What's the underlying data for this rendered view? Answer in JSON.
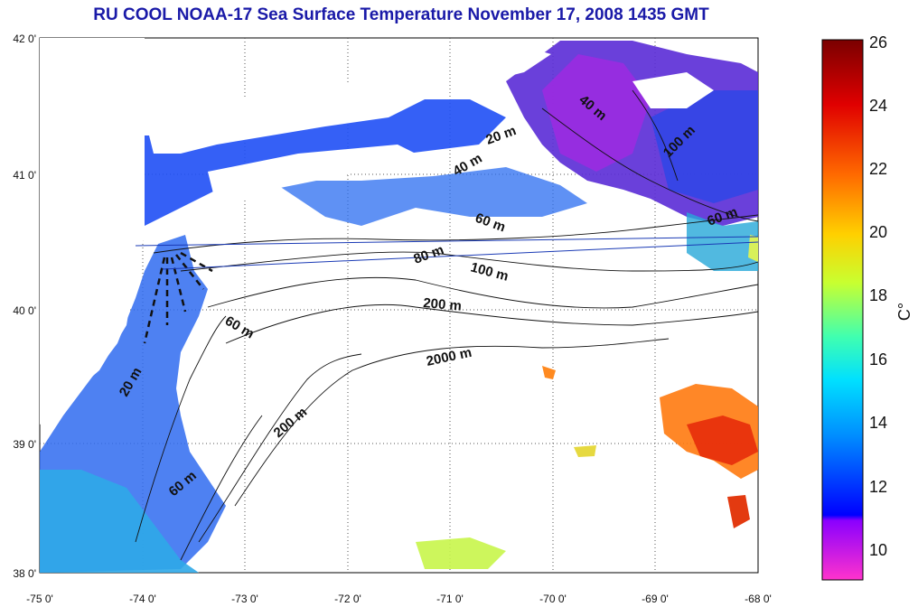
{
  "title": "RU COOL  NOAA-17 Sea Surface Temperature November 17, 2008 1435 GMT",
  "lat_ticks": [
    "42 0'",
    "41 0'",
    "40 0'",
    "39 0'",
    "38 0'"
  ],
  "lon_ticks": [
    "-75 0'",
    "-74 0'",
    "-73 0'",
    "-72 0'",
    "-71 0'",
    "-70 0'",
    "-69 0'",
    "-68 0'"
  ],
  "colorbar": {
    "ticks": [
      "26",
      "24",
      "22",
      "20",
      "18",
      "16",
      "14",
      "12",
      "10"
    ],
    "unit": "C°",
    "colors": [
      "#7a0000",
      "#ff0000",
      "#ff8c00",
      "#ffff00",
      "#7fff3a",
      "#00ffff",
      "#0080ff",
      "#0000ff",
      "#ff33cc"
    ]
  },
  "contour_labels": [
    "20 m",
    "40 m",
    "60 m",
    "80 m",
    "100 m",
    "200 m",
    "2000 m",
    "60 m",
    "200 m",
    "60 m",
    "20 m",
    "40 m",
    "100 m",
    "60 m"
  ]
}
